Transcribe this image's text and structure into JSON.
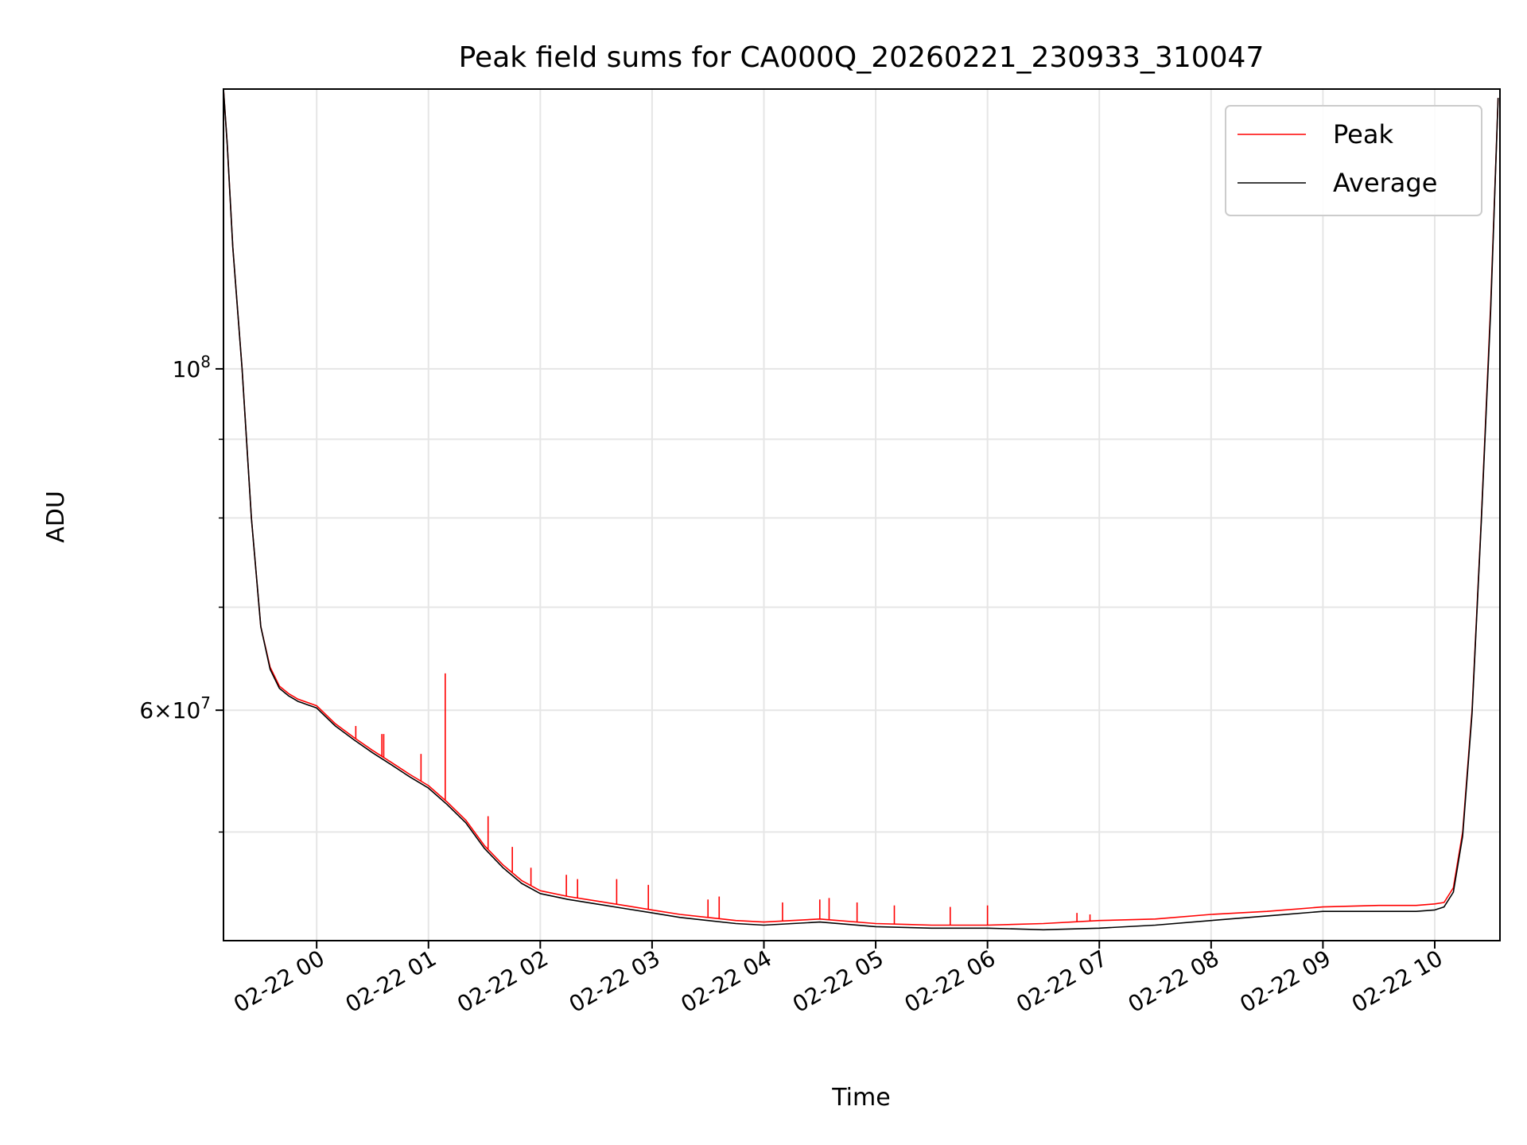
{
  "chart_data": {
    "type": "line",
    "title": "Peak field sums for CA000Q_20260221_230933_310047",
    "xlabel": "Time",
    "ylabel": "ADU",
    "yscale": "log",
    "grid": true,
    "legend_placement": "top-right",
    "x_range": [
      "2026-02-21 23:10",
      "2026-02-22 10:35"
    ],
    "ylim": [
      42500000,
      152000000
    ],
    "x_ticks": [
      {
        "label": "02-22 00",
        "t": "2026-02-22 00:00"
      },
      {
        "label": "02-22 01",
        "t": "2026-02-22 01:00"
      },
      {
        "label": "02-22 02",
        "t": "2026-02-22 02:00"
      },
      {
        "label": "02-22 03",
        "t": "2026-02-22 03:00"
      },
      {
        "label": "02-22 04",
        "t": "2026-02-22 04:00"
      },
      {
        "label": "02-22 05",
        "t": "2026-02-22 05:00"
      },
      {
        "label": "02-22 06",
        "t": "2026-02-22 06:00"
      },
      {
        "label": "02-22 07",
        "t": "2026-02-22 07:00"
      },
      {
        "label": "02-22 08",
        "t": "2026-02-22 08:00"
      },
      {
        "label": "02-22 09",
        "t": "2026-02-22 09:00"
      },
      {
        "label": "02-22 10",
        "t": "2026-02-22 10:00"
      }
    ],
    "y_ticks_major": [
      {
        "value": 100000000,
        "base": "10",
        "exp": "8",
        "mant": ""
      },
      {
        "value": 60000000,
        "base": "10",
        "exp": "7",
        "mant": "6"
      }
    ],
    "y_ticks_minor": [
      50000000,
      70000000,
      80000000,
      90000000
    ],
    "series": [
      {
        "name": "Peak",
        "color": "#ff0000",
        "x": [
          "2026-02-21 23:10",
          "2026-02-21 23:12",
          "2026-02-21 23:15",
          "2026-02-21 23:20",
          "2026-02-21 23:25",
          "2026-02-21 23:30",
          "2026-02-21 23:35",
          "2026-02-21 23:40",
          "2026-02-21 23:45",
          "2026-02-21 23:50",
          "2026-02-21 23:55",
          "2026-02-22 00:00",
          "2026-02-22 00:10",
          "2026-02-22 00:20",
          "2026-02-22 00:30",
          "2026-02-22 00:40",
          "2026-02-22 00:50",
          "2026-02-22 01:00",
          "2026-02-22 01:10",
          "2026-02-22 01:20",
          "2026-02-22 01:30",
          "2026-02-22 01:40",
          "2026-02-22 01:50",
          "2026-02-22 02:00",
          "2026-02-22 02:15",
          "2026-02-22 02:30",
          "2026-02-22 02:45",
          "2026-02-22 03:00",
          "2026-02-22 03:15",
          "2026-02-22 03:30",
          "2026-02-22 03:45",
          "2026-02-22 04:00",
          "2026-02-22 04:30",
          "2026-02-22 05:00",
          "2026-02-22 05:30",
          "2026-02-22 06:00",
          "2026-02-22 06:30",
          "2026-02-22 07:00",
          "2026-02-22 07:30",
          "2026-02-22 08:00",
          "2026-02-22 08:30",
          "2026-02-22 09:00",
          "2026-02-22 09:30",
          "2026-02-22 09:50",
          "2026-02-22 10:00",
          "2026-02-22 10:05",
          "2026-02-22 10:10",
          "2026-02-22 10:15",
          "2026-02-22 10:20",
          "2026-02-22 10:25",
          "2026-02-22 10:30",
          "2026-02-22 10:34"
        ],
        "y": [
          152000000,
          140000000,
          120000000,
          100000000,
          80000000,
          68000000,
          64000000,
          62200000,
          61500000,
          61000000,
          60700000,
          60400000,
          58800000,
          57600000,
          56500000,
          55500000,
          54500000,
          53600000,
          52300000,
          50900000,
          49000000,
          47600000,
          46500000,
          45800000,
          45400000,
          45100000,
          44800000,
          44500000,
          44200000,
          44000000,
          43800000,
          43700000,
          43900000,
          43600000,
          43500000,
          43500000,
          43600000,
          43800000,
          43900000,
          44200000,
          44400000,
          44700000,
          44800000,
          44800000,
          44900000,
          45000000,
          46000000,
          50000000,
          60000000,
          80000000,
          110000000,
          150000000
        ]
      },
      {
        "name": "Average",
        "color": "#000000",
        "x": [
          "2026-02-21 23:10",
          "2026-02-21 23:12",
          "2026-02-21 23:15",
          "2026-02-21 23:20",
          "2026-02-21 23:25",
          "2026-02-21 23:30",
          "2026-02-21 23:35",
          "2026-02-21 23:40",
          "2026-02-21 23:45",
          "2026-02-21 23:50",
          "2026-02-21 23:55",
          "2026-02-22 00:00",
          "2026-02-22 00:10",
          "2026-02-22 00:20",
          "2026-02-22 00:30",
          "2026-02-22 00:40",
          "2026-02-22 00:50",
          "2026-02-22 01:00",
          "2026-02-22 01:10",
          "2026-02-22 01:20",
          "2026-02-22 01:30",
          "2026-02-22 01:40",
          "2026-02-22 01:50",
          "2026-02-22 02:00",
          "2026-02-22 02:15",
          "2026-02-22 02:30",
          "2026-02-22 02:45",
          "2026-02-22 03:00",
          "2026-02-22 03:15",
          "2026-02-22 03:30",
          "2026-02-22 03:45",
          "2026-02-22 04:00",
          "2026-02-22 04:30",
          "2026-02-22 05:00",
          "2026-02-22 05:30",
          "2026-02-22 06:00",
          "2026-02-22 06:30",
          "2026-02-22 07:00",
          "2026-02-22 07:30",
          "2026-02-22 08:00",
          "2026-02-22 08:30",
          "2026-02-22 09:00",
          "2026-02-22 09:30",
          "2026-02-22 09:50",
          "2026-02-22 10:00",
          "2026-02-22 10:05",
          "2026-02-22 10:10",
          "2026-02-22 10:15",
          "2026-02-22 10:20",
          "2026-02-22 10:25",
          "2026-02-22 10:30",
          "2026-02-22 10:34"
        ],
        "y": [
          152000000,
          140000000,
          120000000,
          100000000,
          80000000,
          68000000,
          63800000,
          62000000,
          61300000,
          60800000,
          60500000,
          60200000,
          58600000,
          57400000,
          56300000,
          55300000,
          54300000,
          53400000,
          52100000,
          50700000,
          48800000,
          47400000,
          46300000,
          45600000,
          45200000,
          44900000,
          44600000,
          44300000,
          44000000,
          43800000,
          43600000,
          43500000,
          43700000,
          43400000,
          43300000,
          43300000,
          43200000,
          43300000,
          43500000,
          43800000,
          44100000,
          44400000,
          44400000,
          44400000,
          44500000,
          44700000,
          45700000,
          49700000,
          59700000,
          79700000,
          109000000,
          150000000
        ]
      }
    ],
    "peak_spikes": [
      {
        "t": "2026-02-22 01:09",
        "y": 63400000
      },
      {
        "t": "2026-02-22 00:21",
        "y": 58600000
      },
      {
        "t": "2026-02-22 00:35",
        "y": 57900000
      },
      {
        "t": "2026-02-22 00:36",
        "y": 57900000
      },
      {
        "t": "2026-02-22 00:56",
        "y": 56200000
      },
      {
        "t": "2026-02-22 01:32",
        "y": 51200000
      },
      {
        "t": "2026-02-22 01:45",
        "y": 48900000
      },
      {
        "t": "2026-02-22 01:55",
        "y": 47400000
      },
      {
        "t": "2026-02-22 02:14",
        "y": 46900000
      },
      {
        "t": "2026-02-22 02:20",
        "y": 46600000
      },
      {
        "t": "2026-02-22 02:41",
        "y": 46600000
      },
      {
        "t": "2026-02-22 02:58",
        "y": 46200000
      },
      {
        "t": "2026-02-22 03:30",
        "y": 45200000
      },
      {
        "t": "2026-02-22 03:36",
        "y": 45400000
      },
      {
        "t": "2026-02-22 04:10",
        "y": 45000000
      },
      {
        "t": "2026-02-22 04:30",
        "y": 45200000
      },
      {
        "t": "2026-02-22 04:35",
        "y": 45300000
      },
      {
        "t": "2026-02-22 04:50",
        "y": 45000000
      },
      {
        "t": "2026-02-22 05:10",
        "y": 44800000
      },
      {
        "t": "2026-02-22 05:40",
        "y": 44700000
      },
      {
        "t": "2026-02-22 06:00",
        "y": 44800000
      },
      {
        "t": "2026-02-22 06:48",
        "y": 44300000
      },
      {
        "t": "2026-02-22 06:55",
        "y": 44200000
      }
    ],
    "legend": [
      {
        "name": "Peak",
        "color": "#ff0000"
      },
      {
        "name": "Average",
        "color": "#000000"
      }
    ]
  }
}
